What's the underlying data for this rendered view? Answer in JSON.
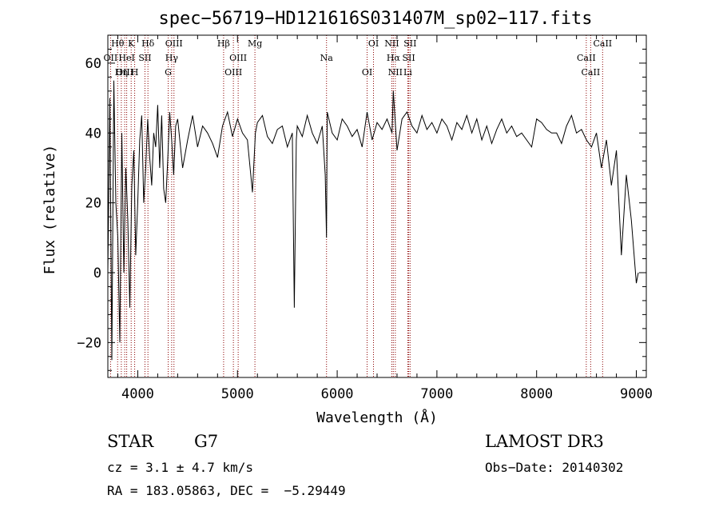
{
  "chart_data": {
    "type": "line",
    "title": "spec−56719−HD121616S031407M_sp02−117.fits",
    "xlabel": "Wavelength (Å)",
    "ylabel": "Flux (relative)",
    "xlim": [
      3700,
      9100
    ],
    "ylim": [
      -30,
      68
    ],
    "x_ticks": [
      4000,
      5000,
      6000,
      7000,
      8000,
      9000
    ],
    "y_ticks": [
      -20,
      0,
      20,
      40,
      60
    ],
    "series": [
      {
        "name": "flux",
        "x": [
          3700,
          3720,
          3740,
          3760,
          3780,
          3800,
          3820,
          3840,
          3860,
          3880,
          3900,
          3920,
          3940,
          3960,
          3980,
          4000,
          4020,
          4040,
          4060,
          4080,
          4100,
          4120,
          4140,
          4160,
          4180,
          4200,
          4220,
          4240,
          4260,
          4280,
          4300,
          4320,
          4340,
          4360,
          4380,
          4400,
          4450,
          4500,
          4550,
          4600,
          4650,
          4700,
          4750,
          4800,
          4850,
          4900,
          4950,
          5000,
          5050,
          5100,
          5150,
          5180,
          5200,
          5250,
          5300,
          5350,
          5400,
          5450,
          5500,
          5550,
          5570,
          5590,
          5600,
          5650,
          5700,
          5750,
          5800,
          5850,
          5880,
          5893,
          5900,
          5950,
          6000,
          6050,
          6100,
          6150,
          6200,
          6250,
          6300,
          6350,
          6400,
          6450,
          6500,
          6550,
          6563,
          6600,
          6650,
          6700,
          6750,
          6800,
          6850,
          6900,
          6950,
          7000,
          7050,
          7100,
          7150,
          7200,
          7250,
          7300,
          7350,
          7400,
          7450,
          7500,
          7550,
          7600,
          7650,
          7700,
          7750,
          7800,
          7850,
          7900,
          7950,
          8000,
          8050,
          8100,
          8150,
          8200,
          8250,
          8300,
          8350,
          8400,
          8450,
          8500,
          8550,
          8600,
          8650,
          8700,
          8750,
          8800,
          8850,
          8900,
          8950,
          9000,
          9020
        ],
        "y": [
          0,
          50,
          -25,
          55,
          20,
          10,
          -20,
          40,
          0,
          30,
          15,
          -10,
          25,
          35,
          5,
          20,
          38,
          45,
          20,
          30,
          44,
          33,
          25,
          40,
          36,
          48,
          30,
          45,
          24,
          20,
          32,
          46,
          38,
          28,
          42,
          44,
          30,
          38,
          45,
          36,
          42,
          40,
          37,
          33,
          42,
          46,
          39,
          44,
          40,
          38,
          23,
          40,
          43,
          45,
          39,
          37,
          41,
          42,
          36,
          40,
          -10,
          38,
          42,
          39,
          45,
          40,
          37,
          42,
          28,
          10,
          46,
          40,
          38,
          44,
          42,
          39,
          41,
          36,
          46,
          38,
          43,
          41,
          44,
          40,
          52,
          35,
          44,
          46,
          42,
          40,
          45,
          41,
          43,
          40,
          44,
          42,
          38,
          43,
          41,
          45,
          40,
          44,
          38,
          42,
          37,
          41,
          44,
          40,
          42,
          39,
          40,
          38,
          36,
          44,
          43,
          41,
          40,
          40,
          37,
          42,
          45,
          40,
          41,
          38,
          36,
          40,
          30,
          38,
          25,
          35,
          5,
          28,
          15,
          -3,
          0
        ]
      }
    ],
    "spectral_lines": [
      {
        "name": "Hθ",
        "wavelength": 3798
      },
      {
        "name": "OII",
        "wavelength": 3727
      },
      {
        "name": "OIII",
        "wavelength": 3869
      },
      {
        "name": "K",
        "wavelength": 3934
      },
      {
        "name": "HeI",
        "wavelength": 3889
      },
      {
        "name": "Hη",
        "wavelength": 3835
      },
      {
        "name": "Hδ",
        "wavelength": 4102
      },
      {
        "name": "SII",
        "wavelength": 4072
      },
      {
        "name": "H",
        "wavelength": 3969
      },
      {
        "name": "OIII",
        "wavelength": 4363
      },
      {
        "name": "Hγ",
        "wavelength": 4340
      },
      {
        "name": "G",
        "wavelength": 4305
      },
      {
        "name": "Hβ",
        "wavelength": 4861
      },
      {
        "name": "OIII",
        "wavelength": 5007
      },
      {
        "name": "OIII",
        "wavelength": 4959
      },
      {
        "name": "Mg",
        "wavelength": 5175
      },
      {
        "name": "Na",
        "wavelength": 5893
      },
      {
        "name": "OI",
        "wavelength": 6300
      },
      {
        "name": "OI",
        "wavelength": 6364
      },
      {
        "name": "Hα",
        "wavelength": 6563
      },
      {
        "name": "NII",
        "wavelength": 6583
      },
      {
        "name": "NII",
        "wavelength": 6548
      },
      {
        "name": "SII",
        "wavelength": 6717
      },
      {
        "name": "Li",
        "wavelength": 6708
      },
      {
        "name": "SII",
        "wavelength": 6731
      },
      {
        "name": "CaII",
        "wavelength": 8498
      },
      {
        "name": "CaII",
        "wavelength": 8542
      },
      {
        "name": "CaII",
        "wavelength": 8662
      }
    ]
  },
  "info": {
    "object_class": "STAR",
    "subclass": "G7",
    "cz": "cz = 3.1 ± 4.7 km/s",
    "coords": "RA = 183.05863, DEC =  −5.29449",
    "survey": "LAMOST DR3",
    "obs_date": "Obs−Date: 20140302"
  },
  "colors": {
    "line": "#000000",
    "marker": "#8b0000"
  }
}
